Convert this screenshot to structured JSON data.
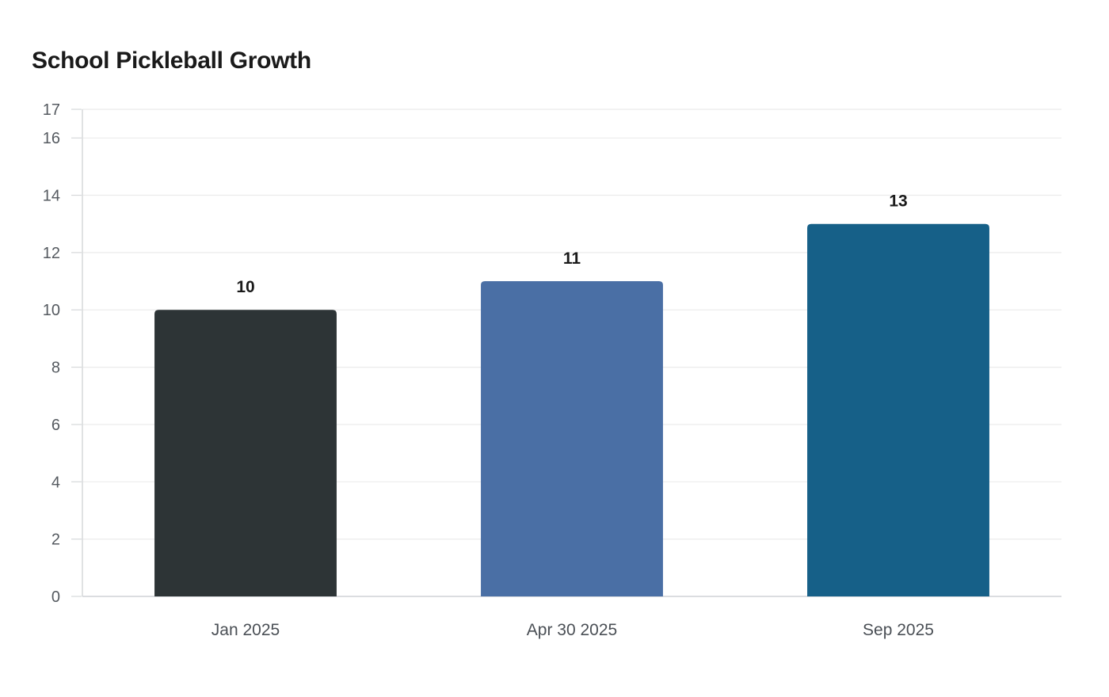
{
  "chart_data": {
    "type": "bar",
    "title": "School Pickleball Growth",
    "xlabel": "",
    "ylabel": "",
    "categories": [
      "Jan 2025",
      "Apr 30 2025",
      "Sep 2025"
    ],
    "values": [
      10,
      11,
      13
    ],
    "data_labels": [
      "10",
      "11",
      "13"
    ],
    "bar_colors": [
      "#2d3436",
      "#4a6fa5",
      "#166088"
    ],
    "ylim": [
      0,
      17
    ],
    "yticks": [
      0,
      2,
      4,
      6,
      8,
      10,
      12,
      14,
      16,
      17
    ],
    "ytick_labels": [
      "0",
      "2",
      "4",
      "6",
      "8",
      "10",
      "12",
      "14",
      "16",
      "17"
    ],
    "grid": true,
    "legend": false
  }
}
